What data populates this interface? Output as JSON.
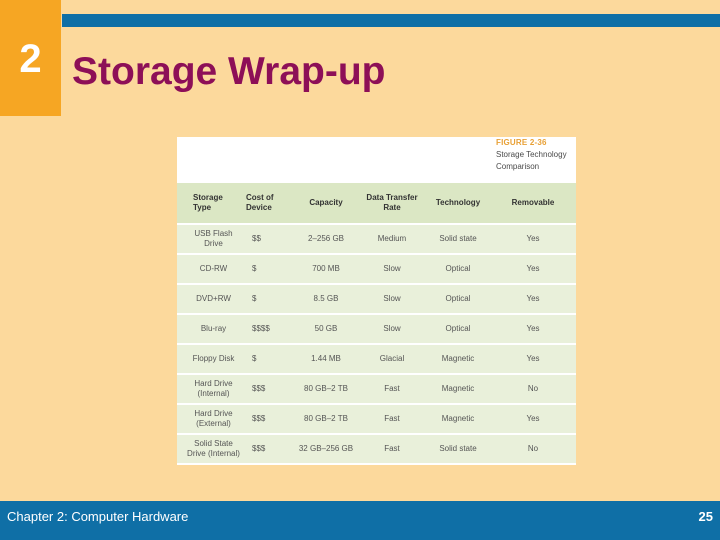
{
  "slide": {
    "chapter_number": "2",
    "title": "Storage Wrap-up",
    "footer_left": "Chapter 2: Computer Hardware",
    "page_number": "25"
  },
  "figure": {
    "label": "FIGURE 2-36",
    "caption_line1": "Storage Technology",
    "caption_line2": "Comparison"
  },
  "table": {
    "headers": [
      "Storage Type",
      "Cost of Device",
      "Capacity",
      "Data Transfer Rate",
      "Technology",
      "Removable"
    ],
    "rows": [
      [
        "USB Flash Drive",
        "$$",
        "2–256 GB",
        "Medium",
        "Solid state",
        "Yes"
      ],
      [
        "CD-RW",
        "$",
        "700 MB",
        "Slow",
        "Optical",
        "Yes"
      ],
      [
        "DVD+RW",
        "$",
        "8.5 GB",
        "Slow",
        "Optical",
        "Yes"
      ],
      [
        "Blu-ray",
        "$$$$",
        "50 GB",
        "Slow",
        "Optical",
        "Yes"
      ],
      [
        "Floppy Disk",
        "$",
        "1.44 MB",
        "Glacial",
        "Magnetic",
        "Yes"
      ],
      [
        "Hard Drive (Internal)",
        "$$$",
        "80 GB–2 TB",
        "Fast",
        "Magnetic",
        "No"
      ],
      [
        "Hard Drive (External)",
        "$$$",
        "80 GB–2 TB",
        "Fast",
        "Magnetic",
        "Yes"
      ],
      [
        "Solid State Drive (Internal)",
        "$$$",
        "32 GB–256 GB",
        "Fast",
        "Solid state",
        "No"
      ]
    ]
  },
  "colors": {
    "background": "#fcd99c",
    "accent_orange": "#f6a623",
    "accent_blue": "#0f6fa6",
    "title_color": "#8d0f57"
  }
}
